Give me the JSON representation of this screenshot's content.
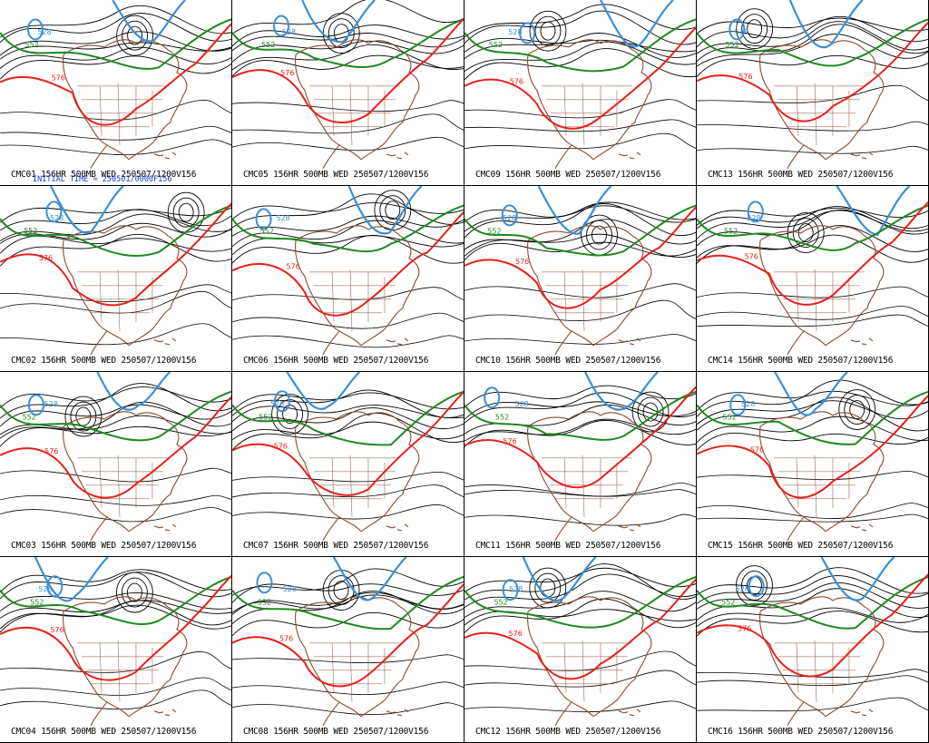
{
  "colors": {
    "red_contour": "#e8201a",
    "green_contour": "#1f8a1f",
    "blue_contour": "#3a8fd8",
    "black_contour": "#000000",
    "coastline": "#8b4a2b",
    "initial_time_text": "#1a3cc8"
  },
  "initial_time": "INITIAL TIME = 250501/0000F156",
  "panels": [
    {
      "caption": "CMC01 156HR 500MB WED 250507/1200V156",
      "labels": {
        "red": "576",
        "green": "552",
        "blue": "528"
      }
    },
    {
      "caption": "CMC05 156HR 500MB WED 250507/1200V156",
      "labels": {
        "red": "576",
        "green": "552",
        "blue": "528"
      }
    },
    {
      "caption": "CMC09 156HR 500MB WED 250507/1200V156",
      "labels": {
        "red": "576",
        "green": "552",
        "blue": "528"
      }
    },
    {
      "caption": "CMC13 156HR 500MB WED 250507/1200V156",
      "labels": {
        "red": "576",
        "green": "552",
        "blue": "528"
      }
    },
    {
      "caption": "CMC02 156HR 500MB WED 250507/1200V156",
      "labels": {
        "red": "576",
        "green": "552",
        "blue": "528"
      }
    },
    {
      "caption": "CMC06 156HR 500MB WED 250507/1200V156",
      "labels": {
        "red": "576",
        "green": "552",
        "blue": "528"
      }
    },
    {
      "caption": "CMC10 156HR 500MB WED 250507/1200V156",
      "labels": {
        "red": "576",
        "green": "552",
        "blue": "528"
      }
    },
    {
      "caption": "CMC14 156HR 500MB WED 250507/1200V156",
      "labels": {
        "red": "576",
        "green": "552",
        "blue": "528"
      }
    },
    {
      "caption": "CMC03 156HR 500MB WED 250507/1200V156",
      "labels": {
        "red": "576",
        "green": "552",
        "blue": "528"
      }
    },
    {
      "caption": "CMC07 156HR 500MB WED 250507/1200V156",
      "labels": {
        "red": "576",
        "green": "552",
        "blue": "528"
      }
    },
    {
      "caption": "CMC11 156HR 500MB WED 250507/1200V156",
      "labels": {
        "red": "576",
        "green": "552",
        "blue": "528"
      }
    },
    {
      "caption": "CMC15 156HR 500MB WED 250507/1200V156",
      "labels": {
        "red": "576",
        "green": "552",
        "blue": "528"
      }
    },
    {
      "caption": "CMC04 156HR 500MB WED 250507/1200V156",
      "labels": {
        "red": "576",
        "green": "552",
        "blue": "528"
      }
    },
    {
      "caption": "CMC08 156HR 500MB WED 250507/1200V156",
      "labels": {
        "red": "576",
        "green": "552",
        "blue": "528"
      }
    },
    {
      "caption": "CMC12 156HR 500MB WED 250507/1200V156",
      "labels": {
        "red": "576",
        "green": "552",
        "blue": "528"
      }
    },
    {
      "caption": "CMC16 156HR 500MB WED 250507/1200V156",
      "labels": {
        "red": "576",
        "green": "552",
        "blue": "528"
      }
    }
  ]
}
